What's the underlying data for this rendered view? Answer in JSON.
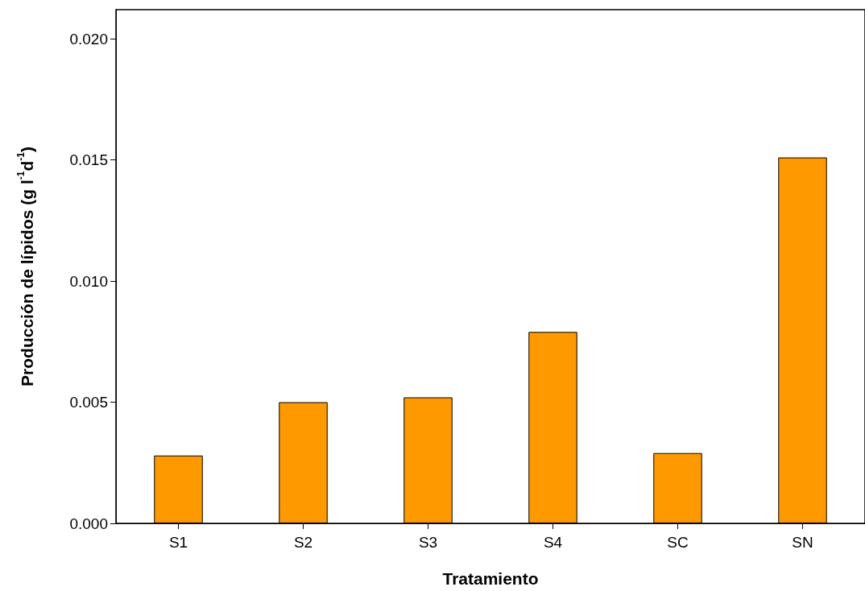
{
  "chart_data": {
    "type": "bar",
    "xlabel": "Tratamiento",
    "ylabel": "Producción de lípidos (g l$^{-1}$d$^{-1}$)",
    "categories": [
      "S1",
      "S2",
      "S3",
      "S4",
      "SC",
      "SN"
    ],
    "values": [
      0.0028,
      0.005,
      0.0052,
      0.0079,
      0.0029,
      0.0151
    ],
    "color": "#ff9900",
    "ylim": [
      0,
      0.0212
    ],
    "yticks": [
      {
        "value": 0,
        "label": "0.000"
      },
      {
        "value": 0.005,
        "label": "0.005"
      },
      {
        "value": 0.01,
        "label": "0.010"
      },
      {
        "value": 0.015,
        "label": "0.015"
      },
      {
        "value": 0.02,
        "label": "0.020"
      }
    ],
    "grid": false
  }
}
